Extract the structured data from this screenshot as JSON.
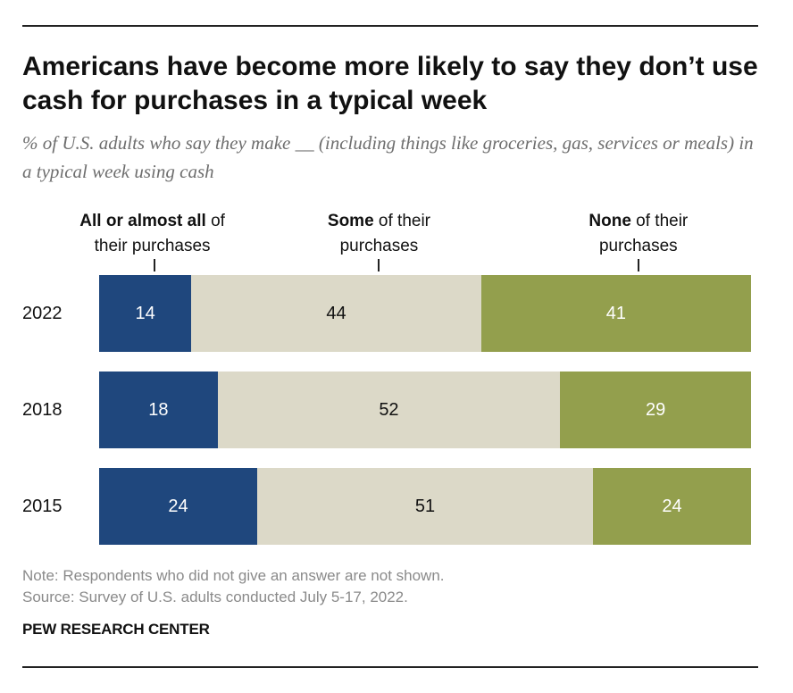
{
  "title": "Americans have become more likely to say they don’t use cash for purchases in a typical week",
  "subtitle": "% of U.S. adults who say they make __ (including things like groceries, gas, services or meals) in a typical week using cash",
  "legend_headers": [
    {
      "bold": "All or almost all",
      "rest": " of",
      "line2": "their purchases"
    },
    {
      "bold": "Some",
      "rest": " of their",
      "line2": "purchases"
    },
    {
      "bold": "None",
      "rest": " of their",
      "line2": "purchases"
    }
  ],
  "colors": {
    "all": "#1f477d",
    "some": "#dcd9c8",
    "none": "#939f4d",
    "label_dark": "#111111",
    "label_light": "#ffffff"
  },
  "chart_data": {
    "type": "bar",
    "orientation": "horizontal-stacked",
    "categories": [
      "2022",
      "2018",
      "2015"
    ],
    "series": [
      {
        "name": "All or almost all of their purchases",
        "values": [
          14,
          18,
          24
        ]
      },
      {
        "name": "Some of their purchases",
        "values": [
          44,
          52,
          51
        ]
      },
      {
        "name": "None of their purchases",
        "values": [
          41,
          29,
          24
        ]
      }
    ],
    "title": "Americans have become more likely to say they don’t use cash for purchases in a typical week",
    "xlabel": "",
    "ylabel": ""
  },
  "note": "Note: Respondents who did not give an answer are not shown.",
  "source": "Source: Survey of U.S. adults conducted July 5-17, 2022.",
  "brand": "PEW RESEARCH CENTER"
}
